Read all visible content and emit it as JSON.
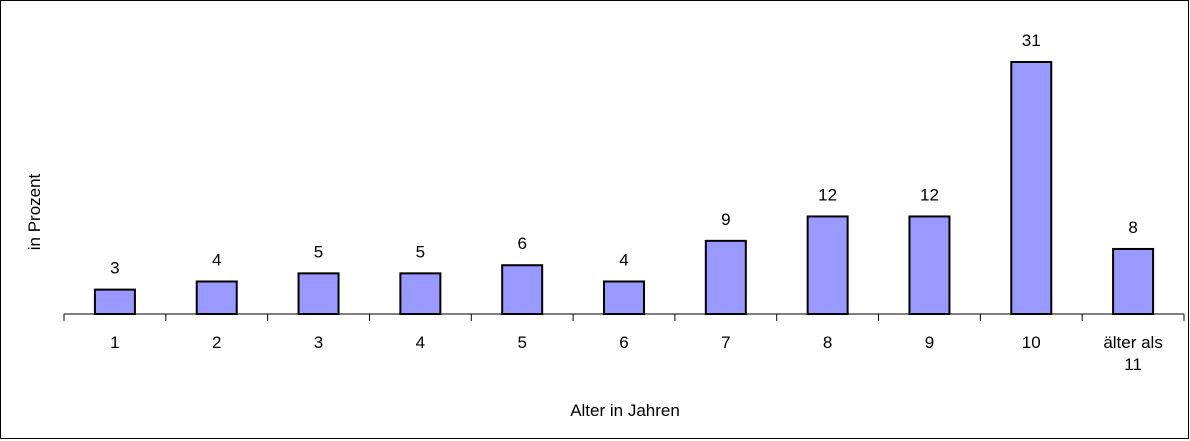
{
  "chart_data": {
    "type": "bar",
    "categories": [
      "1",
      "2",
      "3",
      "4",
      "5",
      "6",
      "7",
      "8",
      "9",
      "10",
      "älter als 11"
    ],
    "values": [
      3,
      4,
      5,
      5,
      6,
      4,
      9,
      12,
      12,
      31,
      8
    ],
    "xlabel": "Alter in Jahren",
    "ylabel": "in Prozent",
    "ylim": [
      0,
      31
    ],
    "grid": false,
    "legend": "none",
    "bar_color": "#9999ff",
    "bar_stroke": "#000000"
  }
}
